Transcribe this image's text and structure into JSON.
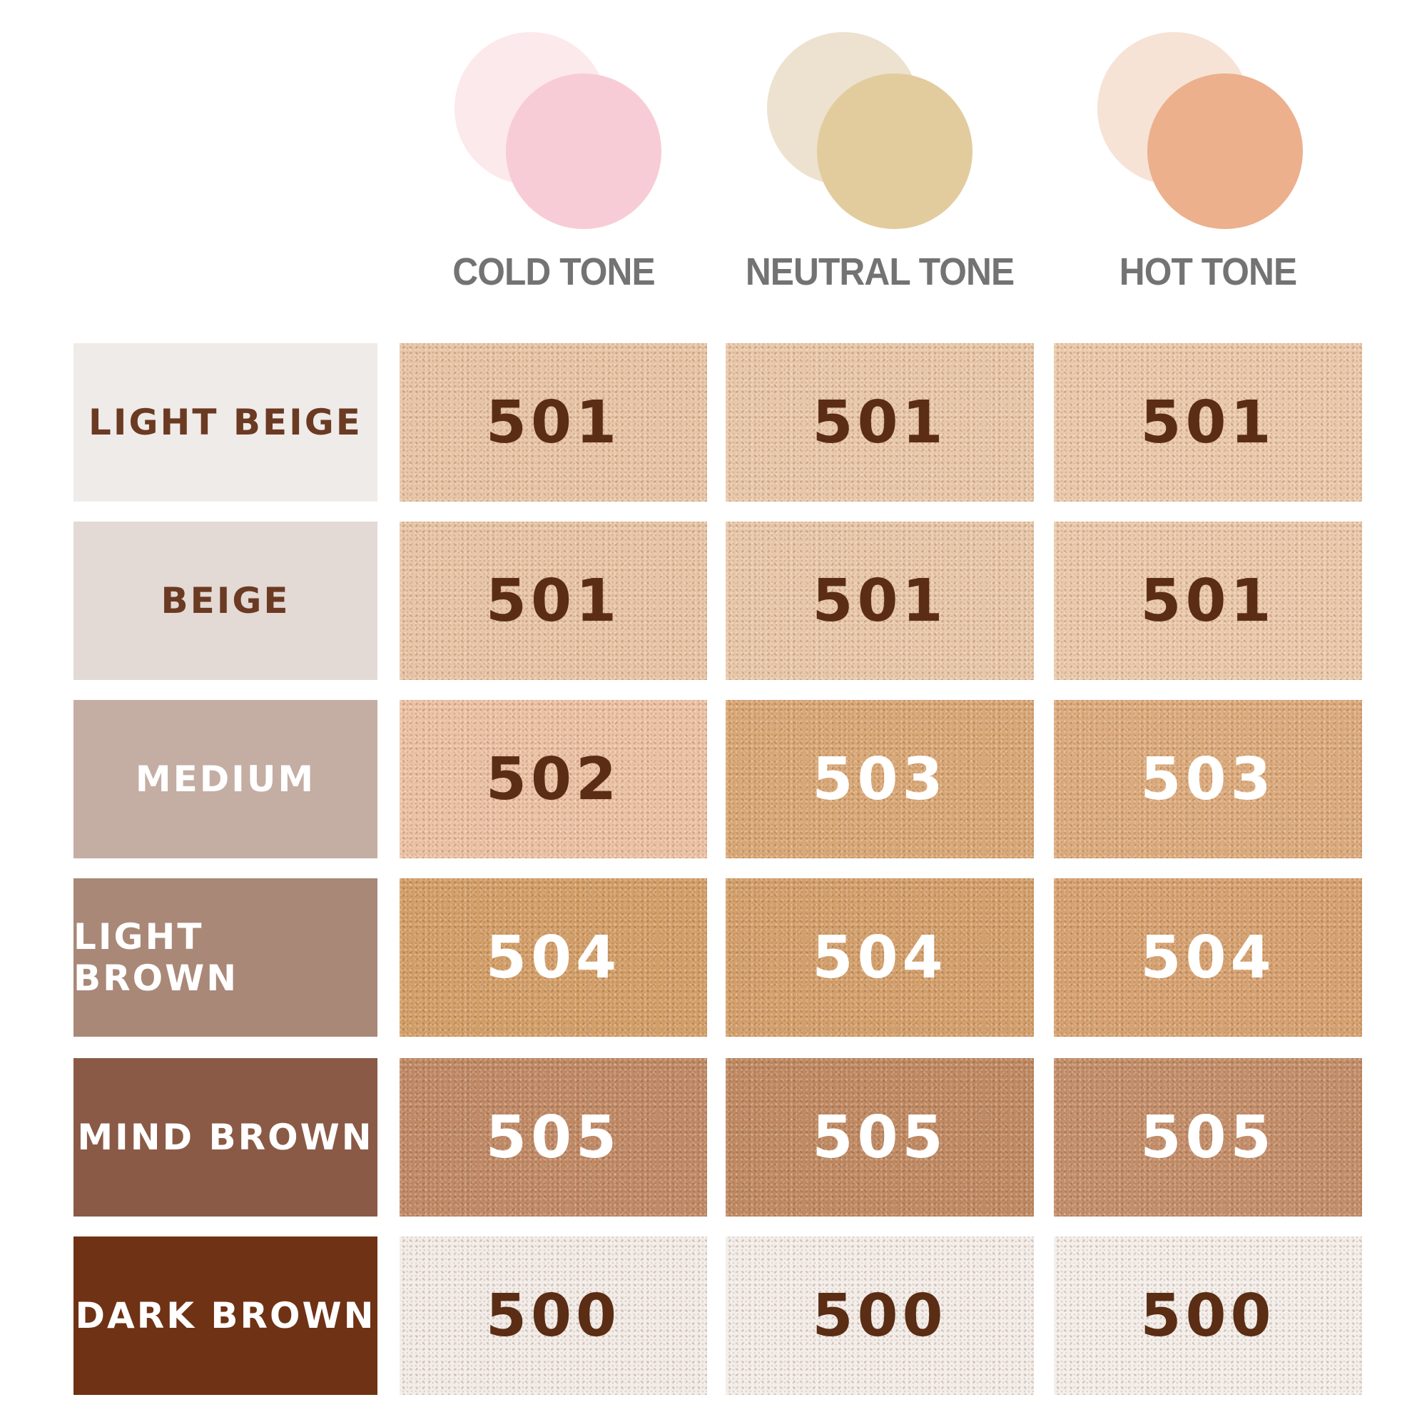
{
  "tones": [
    {
      "label": "COLD TONE",
      "back_color": "#fce9ec",
      "front_color": "#f8ccd6"
    },
    {
      "label": "NEUTRAL TONE",
      "back_color": "#ede2cf",
      "front_color": "#e2cc9e"
    },
    {
      "label": "HOT TONE",
      "back_color": "#f6e3d6",
      "front_color": "#ecb08d"
    }
  ],
  "rows": [
    {
      "label": "LIGHT BEIGE",
      "label_bg": "#efebe9",
      "label_color": "#6b3a22",
      "shades": [
        {
          "code": "501",
          "bg": "#e8c5a6",
          "text": "#5a2d14"
        },
        {
          "code": "501",
          "bg": "#e9c8aa",
          "text": "#5a2d14"
        },
        {
          "code": "501",
          "bg": "#ebc9ab",
          "text": "#5a2d14"
        }
      ]
    },
    {
      "label": "BEIGE",
      "label_bg": "#e3d9d5",
      "label_color": "#6b3a22",
      "shades": [
        {
          "code": "501",
          "bg": "#e8c5a6",
          "text": "#5a2d14"
        },
        {
          "code": "501",
          "bg": "#e9c8aa",
          "text": "#5a2d14"
        },
        {
          "code": "501",
          "bg": "#ebc9ab",
          "text": "#5a2d14"
        }
      ]
    },
    {
      "label": "MEDIUM",
      "label_bg": "#c4ada3",
      "label_color": "#ffffff",
      "shades": [
        {
          "code": "502",
          "bg": "#ecc2a5",
          "text": "#5a2d14"
        },
        {
          "code": "503",
          "bg": "#d9a877",
          "text": "#ffffff"
        },
        {
          "code": "503",
          "bg": "#dcab7d",
          "text": "#ffffff"
        }
      ]
    },
    {
      "label": "LIGHT BROWN",
      "label_bg": "#a98878",
      "label_color": "#ffffff",
      "shades": [
        {
          "code": "504",
          "bg": "#d39f69",
          "text": "#ffffff"
        },
        {
          "code": "504",
          "bg": "#d3a06c",
          "text": "#ffffff"
        },
        {
          "code": "504",
          "bg": "#d6a271",
          "text": "#ffffff"
        }
      ]
    },
    {
      "label": "MIND BROWN",
      "label_bg": "#8a5a46",
      "label_color": "#ffffff",
      "shades": [
        {
          "code": "505",
          "bg": "#c08a66",
          "text": "#ffffff"
        },
        {
          "code": "505",
          "bg": "#bf8a63",
          "text": "#ffffff"
        },
        {
          "code": "505",
          "bg": "#c38e6a",
          "text": "#ffffff"
        }
      ]
    },
    {
      "label": "DARK BROWN",
      "label_bg": "#6f3214",
      "label_color": "#ffffff",
      "shades": [
        {
          "code": "500",
          "bg": "#f2ece8",
          "text": "#5a2d14"
        },
        {
          "code": "500",
          "bg": "#f3ede9",
          "text": "#5a2d14"
        },
        {
          "code": "500",
          "bg": "#f3eeea",
          "text": "#5a2d14"
        }
      ]
    }
  ]
}
